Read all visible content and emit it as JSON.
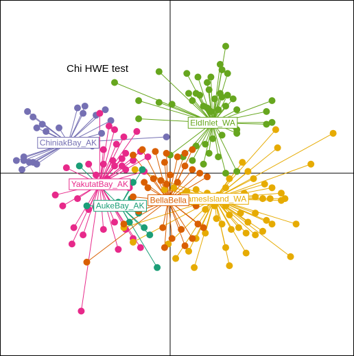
{
  "chart_data": {
    "type": "scatter",
    "title": "Chi HWE test",
    "xlabel": "",
    "ylabel": "",
    "xlim": [
      -1,
      1
    ],
    "ylim": [
      -1,
      1
    ],
    "grid": false,
    "axes_lines_at": [
      0,
      0
    ],
    "series": [
      {
        "name": "ChiniakBay_AK",
        "color": "#7570B3",
        "centroid": [
          -0.55,
          0.168
        ],
        "points": [
          [
            -0.77,
            0.34
          ],
          [
            -0.74,
            0.31
          ],
          [
            -0.69,
            0.27
          ],
          [
            -0.72,
            0.25
          ],
          [
            -0.67,
            0.23
          ],
          [
            -0.6,
            0.25
          ],
          [
            -0.5,
            0.36
          ],
          [
            -0.47,
            0.33
          ],
          [
            -0.46,
            0.37
          ],
          [
            -0.4,
            0.32
          ],
          [
            -0.35,
            0.35
          ],
          [
            -0.32,
            0.29
          ],
          [
            -0.37,
            0.22
          ],
          [
            -0.42,
            0.15
          ],
          [
            -0.79,
            0.07
          ],
          [
            -0.76,
            0.06
          ],
          [
            -0.74,
            0.06
          ],
          [
            -0.72,
            0.05
          ],
          [
            -0.8,
            0.02
          ],
          [
            -0.83,
            0.07
          ],
          [
            -0.79,
            0.09
          ],
          [
            -0.02,
            0.2
          ]
        ]
      },
      {
        "name": "YakutatBay_AK",
        "color": "#E7298A",
        "centroid": [
          -0.38,
          -0.061
        ],
        "points": [
          [
            -0.38,
            0.33
          ],
          [
            -0.33,
            0.26
          ],
          [
            -0.3,
            0.24
          ],
          [
            -0.25,
            0.2
          ],
          [
            -0.18,
            0.23
          ],
          [
            -0.29,
            0.16
          ],
          [
            -0.36,
            0.13
          ],
          [
            -0.24,
            0.11
          ],
          [
            -0.16,
            0.12
          ],
          [
            -0.31,
            0.07
          ],
          [
            -0.26,
            0.08
          ],
          [
            -0.2,
            0.07
          ],
          [
            -0.12,
            0.09
          ],
          [
            -0.44,
            0.05
          ],
          [
            -0.36,
            0.05
          ],
          [
            -0.3,
            0.04
          ],
          [
            -0.26,
            0.04
          ],
          [
            -0.56,
            0.03
          ],
          [
            -0.24,
            0.02
          ],
          [
            -0.4,
            -0.01
          ],
          [
            -0.34,
            -0.03
          ],
          [
            -0.28,
            -0.05
          ],
          [
            -0.22,
            -0.08
          ],
          [
            -0.14,
            0.01
          ],
          [
            -0.62,
            -0.12
          ],
          [
            -0.5,
            -0.14
          ],
          [
            -0.58,
            -0.18
          ],
          [
            -0.44,
            -0.2
          ],
          [
            -0.3,
            -0.27
          ],
          [
            -0.24,
            -0.31
          ],
          [
            -0.52,
            -0.3
          ],
          [
            -0.47,
            -0.34
          ],
          [
            -0.53,
            -0.39
          ],
          [
            -0.36,
            -0.31
          ],
          [
            -0.2,
            -0.36
          ],
          [
            -0.16,
            -0.41
          ],
          [
            -0.28,
            -0.42
          ],
          [
            -0.48,
            -0.76
          ]
        ]
      },
      {
        "name": "AukeBay_AK",
        "color": "#1B9E77",
        "centroid": [
          -0.27,
          -0.18
        ],
        "points": [
          [
            -0.49,
            0.04
          ],
          [
            -0.45,
            -0.18
          ],
          [
            -0.4,
            -0.19
          ],
          [
            -0.33,
            -0.19
          ],
          [
            -0.28,
            -0.16
          ],
          [
            -0.21,
            -0.14
          ],
          [
            -0.17,
            -0.22
          ],
          [
            -0.22,
            -0.27
          ],
          [
            -0.14,
            -0.3
          ],
          [
            -0.11,
            -0.34
          ],
          [
            -0.07,
            -0.52
          ],
          [
            -0.2,
            -0.05
          ],
          [
            -0.15,
            0.02
          ]
        ]
      },
      {
        "name": "EldInlet_WA",
        "color": "#66A61E",
        "centroid": [
          0.23,
          0.278
        ],
        "points": [
          [
            0.3,
            0.7
          ],
          [
            0.27,
            0.6
          ],
          [
            0.28,
            0.57
          ],
          [
            0.31,
            0.55
          ],
          [
            -0.06,
            0.56
          ],
          [
            0.09,
            0.55
          ],
          [
            0.15,
            0.53
          ],
          [
            0.22,
            0.53
          ],
          [
            0.2,
            0.5
          ],
          [
            0.14,
            0.44
          ],
          [
            0.1,
            0.44
          ],
          [
            0.16,
            0.43
          ],
          [
            0.21,
            0.46
          ],
          [
            0.27,
            0.44
          ],
          [
            0.31,
            0.43
          ],
          [
            0.34,
            0.41
          ],
          [
            0.28,
            0.42
          ],
          [
            0.24,
            0.41
          ],
          [
            0.12,
            0.4
          ],
          [
            0.18,
            0.37
          ],
          [
            0.2,
            0.36
          ],
          [
            0.22,
            0.34
          ],
          [
            0.26,
            0.35
          ],
          [
            0.3,
            0.37
          ],
          [
            0.36,
            0.35
          ],
          [
            0.55,
            0.4
          ],
          [
            0.52,
            0.34
          ],
          [
            0.01,
            0.38
          ],
          [
            -0.06,
            0.39
          ],
          [
            -0.17,
            0.4
          ],
          [
            -0.3,
            0.5
          ],
          [
            -0.17,
            0.3
          ],
          [
            0.55,
            0.28
          ],
          [
            0.52,
            0.27
          ],
          [
            0.36,
            0.24
          ],
          [
            0.36,
            0.22
          ],
          [
            0.28,
            0.21
          ],
          [
            0.23,
            0.19
          ],
          [
            0.19,
            0.16
          ],
          [
            0.14,
            0.15
          ],
          [
            0.21,
            0.11
          ],
          [
            0.12,
            0.07
          ],
          [
            0.07,
            0.09
          ],
          [
            0.0,
            0.1
          ],
          [
            0.18,
            0.05
          ],
          [
            0.26,
            0.09
          ],
          [
            0.36,
            0.01
          ],
          [
            0.3,
            0.0
          ]
        ]
      },
      {
        "name": "BellaBella",
        "color": "#D95F02",
        "centroid": [
          -0.01,
          -0.149
        ],
        "points": [
          [
            -0.15,
            0.13
          ],
          [
            -0.2,
            0.1
          ],
          [
            -0.08,
            0.12
          ],
          [
            -0.02,
            0.11
          ],
          [
            0.08,
            0.11
          ],
          [
            0.12,
            0.13
          ],
          [
            0.04,
            0.09
          ],
          [
            -0.03,
            0.06
          ],
          [
            0.08,
            0.04
          ],
          [
            0.12,
            0.02
          ],
          [
            0.16,
            0.0
          ],
          [
            0.2,
            -0.02
          ],
          [
            -0.14,
            -0.05
          ],
          [
            -0.09,
            -0.03
          ],
          [
            -0.05,
            -0.04
          ],
          [
            -0.02,
            -0.06
          ],
          [
            0.0,
            -0.01
          ],
          [
            0.04,
            -0.05
          ],
          [
            -0.12,
            -0.08
          ],
          [
            -0.2,
            -0.13
          ],
          [
            -0.25,
            -0.28
          ],
          [
            0.03,
            -0.14
          ],
          [
            0.1,
            -0.15
          ],
          [
            0.14,
            -0.18
          ],
          [
            -0.17,
            -0.21
          ],
          [
            -0.04,
            -0.3
          ],
          [
            0.01,
            -0.36
          ],
          [
            0.06,
            -0.31
          ],
          [
            0.15,
            -0.28
          ],
          [
            0.18,
            -0.3
          ],
          [
            0.12,
            -0.36
          ],
          [
            0.08,
            -0.4
          ],
          [
            -0.03,
            -0.41
          ],
          [
            -0.45,
            -0.49
          ]
        ]
      },
      {
        "name": "JamesIsland_WA",
        "color": "#E6AB02",
        "centroid": [
          0.24,
          -0.141
        ],
        "points": [
          [
            0.57,
            0.24
          ],
          [
            0.58,
            0.14
          ],
          [
            0.88,
            0.22
          ],
          [
            0.76,
            0.05
          ],
          [
            0.39,
            0.06
          ],
          [
            0.42,
            0.01
          ],
          [
            0.45,
            -0.03
          ],
          [
            0.51,
            -0.06
          ],
          [
            0.55,
            -0.08
          ],
          [
            0.6,
            -0.11
          ],
          [
            0.62,
            -0.14
          ],
          [
            0.6,
            -0.15
          ],
          [
            0.54,
            -0.14
          ],
          [
            0.5,
            -0.14
          ],
          [
            0.46,
            -0.13
          ],
          [
            0.4,
            -0.11
          ],
          [
            0.3,
            -0.08
          ],
          [
            0.32,
            -0.03
          ],
          [
            0.26,
            -0.12
          ],
          [
            0.2,
            -0.11
          ],
          [
            0.14,
            -0.09
          ],
          [
            0.09,
            -0.1
          ],
          [
            0.02,
            -0.08
          ],
          [
            -0.03,
            -0.09
          ],
          [
            0.07,
            -0.12
          ],
          [
            0.19,
            -0.2
          ],
          [
            0.24,
            -0.18
          ],
          [
            0.3,
            -0.18
          ],
          [
            0.32,
            -0.23
          ],
          [
            0.38,
            -0.22
          ],
          [
            0.42,
            -0.27
          ],
          [
            0.46,
            -0.22
          ],
          [
            0.52,
            -0.26
          ],
          [
            0.55,
            -0.28
          ],
          [
            0.5,
            -0.32
          ],
          [
            0.46,
            -0.34
          ],
          [
            0.41,
            -0.33
          ],
          [
            0.37,
            -0.3
          ],
          [
            0.33,
            -0.31
          ],
          [
            0.28,
            -0.28
          ],
          [
            0.25,
            -0.25
          ],
          [
            0.19,
            -0.33
          ],
          [
            0.14,
            -0.36
          ],
          [
            0.1,
            -0.43
          ],
          [
            0.03,
            -0.47
          ],
          [
            -0.01,
            -0.39
          ],
          [
            0.3,
            -0.41
          ],
          [
            0.41,
            -0.44
          ],
          [
            0.32,
            -0.51
          ],
          [
            0.13,
            -0.52
          ],
          [
            0.68,
            -0.28
          ],
          [
            0.65,
            -0.46
          ],
          [
            -0.2,
            -0.38
          ],
          [
            -0.25,
            -0.3
          ],
          [
            -0.19,
            0.02
          ]
        ]
      }
    ],
    "labels": {
      "ChiniakBay_AK": "ChiniakBay_AK",
      "YakutatBay_AK": "YakutatBay_AK",
      "AukeBay_AK": "AukeBay_AK",
      "EldInlet_WA": "EldInlet_WA",
      "BellaBella": "BellaBella",
      "JamesIsland_WA": "JamesIsland_WA"
    }
  }
}
